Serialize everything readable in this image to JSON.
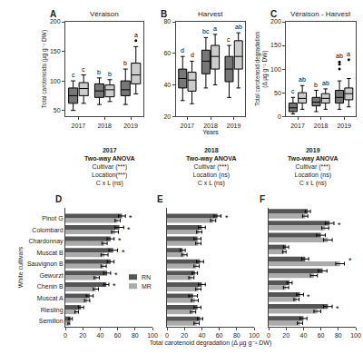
{
  "chart_data": [
    {
      "type": "box",
      "title": "Véraison",
      "panel_label": "A",
      "ylabel": "Total carotenoids (µg g⁻¹ DW)",
      "categories": [
        "2017",
        "2018",
        "2019"
      ],
      "ylim": [
        40,
        200
      ],
      "yticks": [
        50,
        100,
        150,
        200
      ],
      "grid": false,
      "series": [
        {
          "color": "#777777",
          "median": [
            75,
            83,
            85
          ],
          "q1": [
            62,
            72,
            75
          ],
          "q3": [
            88,
            95,
            100
          ],
          "whislo": [
            50,
            60,
            60
          ],
          "whishi": [
            100,
            105,
            120
          ],
          "fliers": [
            [],
            [],
            []
          ],
          "letters": [
            "c",
            "b",
            "b"
          ]
        },
        {
          "color": "#cccccc",
          "median": [
            87,
            85,
            110
          ],
          "q1": [
            75,
            73,
            95
          ],
          "q3": [
            97,
            93,
            130
          ],
          "whislo": [
            62,
            65,
            78
          ],
          "whishi": [
            110,
            102,
            158
          ],
          "fliers": [
            [],
            [],
            [
              168
            ]
          ],
          "letters": [
            "c",
            "b",
            "a"
          ]
        }
      ]
    },
    {
      "type": "box",
      "title": "Harvest",
      "panel_label": "B",
      "xlabel": "Years",
      "categories": [
        "2017",
        "2018",
        "2019"
      ],
      "ylim": [
        20,
        80
      ],
      "yticks": [
        20,
        40,
        60,
        80
      ],
      "grid": false,
      "series": [
        {
          "color": "#777777",
          "median": [
            44,
            55,
            50
          ],
          "q1": [
            38,
            47,
            42
          ],
          "q3": [
            50,
            62,
            58
          ],
          "whislo": [
            30,
            38,
            32
          ],
          "whishi": [
            58,
            70,
            65
          ],
          "fliers": [
            [],
            [],
            []
          ],
          "letters": [
            "d",
            "bc",
            "c"
          ]
        },
        {
          "color": "#cccccc",
          "median": [
            43,
            58,
            58
          ],
          "q1": [
            36,
            50,
            50
          ],
          "q3": [
            48,
            65,
            68
          ],
          "whislo": [
            28,
            40,
            38
          ],
          "whishi": [
            55,
            72,
            73
          ],
          "fliers": [
            [],
            [],
            []
          ],
          "letters": [
            "d",
            "a",
            "ab"
          ]
        }
      ]
    },
    {
      "type": "box",
      "title": "Véraison - Harvest",
      "panel_label": "C",
      "ylabel": "Total carotenoid degradation\n(Δ µg g⁻¹ DW)",
      "categories": [
        "2017",
        "2018",
        "2019"
      ],
      "ylim": [
        0,
        200
      ],
      "yticks": [
        0,
        50,
        100,
        150,
        200
      ],
      "grid": false,
      "series": [
        {
          "color": "#777777",
          "median": [
            18,
            30,
            40
          ],
          "q1": [
            10,
            22,
            28
          ],
          "q3": [
            28,
            40,
            55
          ],
          "whislo": [
            5,
            10,
            15
          ],
          "whishi": [
            40,
            55,
            75
          ],
          "fliers": [
            [],
            [],
            [
              100,
              110,
              115
            ]
          ],
          "letters": [
            "c",
            "b",
            "ab"
          ]
        },
        {
          "color": "#cccccc",
          "median": [
            38,
            38,
            48
          ],
          "q1": [
            28,
            28,
            35
          ],
          "q3": [
            50,
            48,
            60
          ],
          "whislo": [
            15,
            15,
            20
          ],
          "whishi": [
            65,
            58,
            80
          ],
          "fliers": [
            [],
            [],
            [
              120
            ]
          ],
          "letters": [
            "ab",
            "ab",
            "a"
          ]
        }
      ]
    },
    {
      "type": "text",
      "columns": [
        {
          "title": "2017",
          "lines": [
            "Two-way ANOVA",
            "Cultivar (***)",
            "Location(***)",
            "C x L (ns)"
          ]
        },
        {
          "title": "2018",
          "lines": [
            "Two-way ANOVA",
            "Cultivar (***)",
            "Location (ns)",
            "C x L (ns)"
          ]
        },
        {
          "title": "2019",
          "lines": [
            "Two-way ANOVA",
            "Cultivar (***)",
            "Location (ns)",
            "C x L (ns)"
          ]
        }
      ]
    },
    {
      "type": "bar",
      "orientation": "horizontal",
      "panel_label": "D",
      "ylabel": "White cultivars",
      "legend": "right",
      "grid": false,
      "categories": [
        "Pinot G",
        "Colombard",
        "Chardonnay",
        "Muscat B",
        "Sauvignon B",
        "Gewurzt",
        "Chenin B",
        "Muscat A",
        "Riesling",
        "Semillon"
      ],
      "xlim": [
        0,
        100
      ],
      "xticks": [
        0,
        20,
        40,
        60,
        80,
        100
      ],
      "series": [
        {
          "name": "RN",
          "color": "#555555",
          "values": [
            65,
            62,
            52,
            55,
            52,
            48,
            47,
            28,
            18,
            6
          ],
          "errors": [
            4,
            5,
            4,
            5,
            4,
            4,
            3,
            4,
            3,
            2
          ]
        },
        {
          "name": "MR",
          "color": "#aaaaaa",
          "values": [
            60,
            57,
            45,
            45,
            44,
            36,
            35,
            25,
            13,
            4
          ],
          "errors": [
            3,
            4,
            3,
            4,
            3,
            3,
            3,
            3,
            2,
            1
          ]
        }
      ],
      "annotations": [
        {
          "category": "Pinot G",
          "text": "*"
        },
        {
          "category": "Colombard",
          "text": "*"
        },
        {
          "category": "Chardonnay",
          "text": "*"
        },
        {
          "category": "Muscat B",
          "text": "*"
        },
        {
          "category": "Gewurzt",
          "text": "*"
        },
        {
          "category": "Chenin B",
          "text": "*"
        }
      ]
    },
    {
      "type": "bar",
      "orientation": "horizontal",
      "panel_label": "E",
      "xlabel": "Total carotenoid degradation (Δ µg g⁻¹ DW)",
      "tick_labels": "x",
      "grid": false,
      "categories": [
        "Pinot G",
        "Colombard",
        "Chardonnay",
        "Muscat B",
        "Sauvignon B",
        "Gewurzt",
        "Chenin B",
        "Muscat A",
        "Riesling",
        "Semillon"
      ],
      "xlim": [
        0,
        100
      ],
      "xticks": [
        0,
        20,
        40,
        60,
        80,
        100
      ],
      "series": [
        {
          "name": "RN",
          "color": "#555555",
          "values": [
            58,
            40,
            35,
            18,
            38,
            32,
            40,
            30,
            35,
            38
          ],
          "errors": [
            4,
            4,
            4,
            3,
            4,
            3,
            4,
            5,
            4,
            3
          ]
        },
        {
          "name": "MR",
          "color": "#aaaaaa",
          "values": [
            53,
            37,
            36,
            20,
            34,
            28,
            36,
            32,
            30,
            34
          ],
          "errors": [
            3,
            3,
            3,
            3,
            3,
            3,
            3,
            4,
            3,
            3
          ]
        }
      ],
      "annotations": [
        {
          "category": "Pinot G",
          "text": "*"
        }
      ]
    },
    {
      "type": "bar",
      "orientation": "horizontal",
      "panel_label": "F",
      "tick_labels": "x",
      "grid": false,
      "categories": [
        "Pinot G",
        "Colombard",
        "Chardonnay",
        "Muscat B",
        "Sauvignon B",
        "Gewurzt",
        "Chenin B",
        "Muscat A",
        "Riesling",
        "Semillon"
      ],
      "xlim": [
        0,
        100
      ],
      "xticks": [
        0,
        20,
        40,
        60,
        80,
        100
      ],
      "series": [
        {
          "name": "RN",
          "color": "#555555",
          "values": [
            45,
            70,
            60,
            20,
            42,
            62,
            24,
            36,
            68,
            40
          ],
          "errors": [
            3,
            5,
            5,
            3,
            4,
            5,
            3,
            4,
            5,
            4
          ]
        },
        {
          "name": "MR",
          "color": "#aaaaaa",
          "values": [
            42,
            65,
            68,
            18,
            82,
            52,
            20,
            32,
            56,
            36
          ],
          "errors": [
            3,
            4,
            5,
            2,
            5,
            4,
            3,
            3,
            4,
            3
          ]
        }
      ],
      "annotations": [
        {
          "category": "Colombard",
          "text": "*"
        },
        {
          "category": "Sauvignon B",
          "text": "*"
        },
        {
          "category": "Muscat A",
          "text": "*"
        },
        {
          "category": "Riesling",
          "text": "*"
        }
      ]
    }
  ]
}
